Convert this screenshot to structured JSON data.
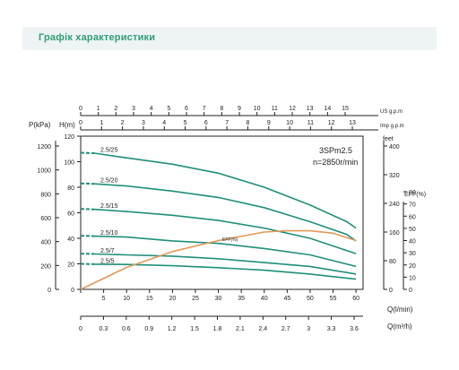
{
  "header": {
    "title": "Графік характеристики"
  },
  "colors": {
    "curve": "#1f8f7a",
    "eff": "#e39a55",
    "axis": "#222222",
    "header_text": "#2f9e73"
  },
  "chart_data": {
    "type": "line",
    "model_label": "3SPm2.5",
    "speed_label": "n=2850r/min",
    "axes": {
      "q_lmin": {
        "label": "Q(l/min)",
        "ticks": [
          "0",
          "5",
          "10",
          "15",
          "20",
          "25",
          "30",
          "35",
          "40",
          "45",
          "50",
          "55",
          "60"
        ],
        "range": [
          0,
          60
        ]
      },
      "q_m3h": {
        "label": "Q(m³/h)",
        "ticks": [
          "0",
          "0.3",
          "0.6",
          "0.9",
          "1.2",
          "1.5",
          "1.8",
          "2.1",
          "2.4",
          "2.7",
          "3",
          "3.3",
          "3.6"
        ],
        "range": [
          0,
          3.6
        ]
      },
      "us_gpm": {
        "label": "US g.p.m",
        "ticks": [
          "0",
          "1",
          "2",
          "3",
          "4",
          "5",
          "6",
          "7",
          "8",
          "9",
          "10",
          "11",
          "12",
          "13",
          "14",
          "15"
        ]
      },
      "imp_gpm": {
        "label": "Imp g.p.m",
        "ticks": [
          "0",
          "1",
          "2",
          "3",
          "4",
          "5",
          "6",
          "7",
          "8",
          "9",
          "10",
          "11",
          "12",
          "13"
        ]
      },
      "h_m": {
        "label": "H(m)",
        "ticks": [
          "0",
          "20",
          "40",
          "60",
          "80",
          "100",
          "120"
        ],
        "range": [
          0,
          120
        ]
      },
      "p_kpa": {
        "label": "P(kPa)",
        "ticks": [
          "0",
          "200",
          "400",
          "600",
          "800",
          "1000",
          "1200"
        ]
      },
      "feet": {
        "label": "feet",
        "ticks": [
          "0",
          "80",
          "160",
          "240",
          "320",
          "400"
        ]
      },
      "eff_pct": {
        "label": "EFF(%)",
        "ticks": [
          "0",
          "10",
          "20",
          "30",
          "40",
          "50",
          "60",
          "70",
          "80"
        ],
        "range": [
          0,
          80
        ]
      }
    },
    "series": [
      {
        "name": "2.5/25",
        "points": [
          [
            0,
            107
          ],
          [
            10,
            103
          ],
          [
            20,
            98
          ],
          [
            30,
            91
          ],
          [
            40,
            80
          ],
          [
            50,
            66
          ],
          [
            58,
            53
          ],
          [
            60,
            48
          ]
        ]
      },
      {
        "name": "2.5/20",
        "points": [
          [
            0,
            83
          ],
          [
            10,
            81
          ],
          [
            20,
            77
          ],
          [
            30,
            72
          ],
          [
            40,
            64
          ],
          [
            50,
            53
          ],
          [
            58,
            43
          ],
          [
            60,
            38
          ]
        ]
      },
      {
        "name": "2.5/15",
        "points": [
          [
            0,
            63
          ],
          [
            10,
            61
          ],
          [
            20,
            58
          ],
          [
            30,
            54
          ],
          [
            40,
            48
          ],
          [
            50,
            40
          ],
          [
            60,
            28
          ]
        ]
      },
      {
        "name": "2.5/10",
        "points": [
          [
            0,
            42
          ],
          [
            10,
            41
          ],
          [
            20,
            38
          ],
          [
            30,
            36
          ],
          [
            40,
            32
          ],
          [
            50,
            27
          ],
          [
            60,
            18
          ]
        ]
      },
      {
        "name": "2.5/7",
        "points": [
          [
            0,
            28
          ],
          [
            10,
            27
          ],
          [
            20,
            26
          ],
          [
            30,
            24
          ],
          [
            40,
            21
          ],
          [
            50,
            18
          ],
          [
            60,
            12
          ]
        ]
      },
      {
        "name": "2.5/5",
        "points": [
          [
            0,
            20
          ],
          [
            10,
            19.5
          ],
          [
            20,
            18.5
          ],
          [
            30,
            17
          ],
          [
            40,
            15
          ],
          [
            50,
            12
          ],
          [
            60,
            8
          ]
        ]
      }
    ],
    "efficiency": {
      "name": "EFF(%)",
      "points": [
        [
          0,
          0
        ],
        [
          10,
          18
        ],
        [
          20,
          31
        ],
        [
          30,
          40
        ],
        [
          40,
          47
        ],
        [
          45,
          48
        ],
        [
          50,
          48
        ],
        [
          55,
          46
        ],
        [
          60,
          40
        ]
      ]
    }
  }
}
